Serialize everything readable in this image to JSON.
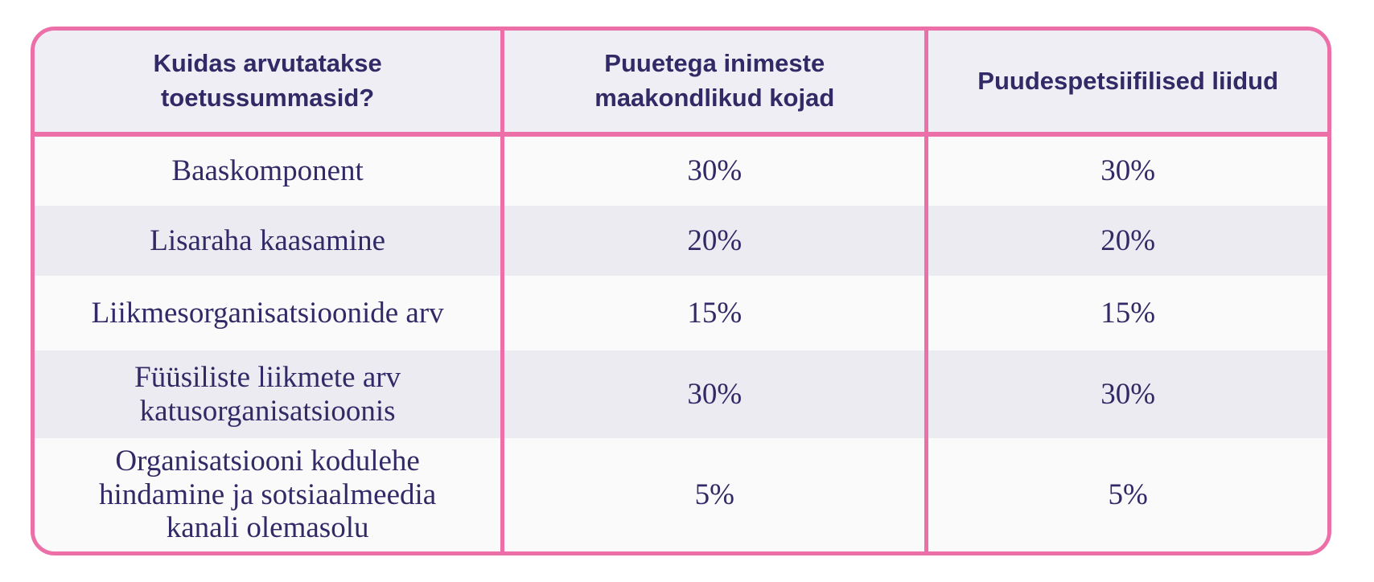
{
  "colors": {
    "border_pink": "#ed6fa7",
    "header_bg": "#efeef4",
    "row_stripe_light": "#fafafa",
    "row_stripe_dark": "#ecebf2",
    "text": "#312a66",
    "page_bg": "#ffffff"
  },
  "chart_data": {
    "type": "table",
    "columns": [
      "Kuidas arvutatakse toetussummasid?",
      "Puuetega inimeste maakondlikud kojad",
      "Puudespetsiifilised liidud"
    ],
    "rows": [
      [
        "Baaskomponent",
        "30%",
        "30%"
      ],
      [
        "Lisaraha kaasamine",
        "20%",
        "20%"
      ],
      [
        "Liikmesorganisatsioonide arv",
        "15%",
        "15%"
      ],
      [
        "Füüsiliste liikmete arv katusorganisatsioonis",
        "30%",
        "30%"
      ],
      [
        "Organisatsiooni kodulehe hindamine ja sotsiaalmeedia kanali olemasolu",
        "5%",
        "5%"
      ]
    ],
    "layout": {
      "header_position": "top",
      "striped_rows": true,
      "grid": "vertical-dividers-and-header-rule"
    }
  }
}
